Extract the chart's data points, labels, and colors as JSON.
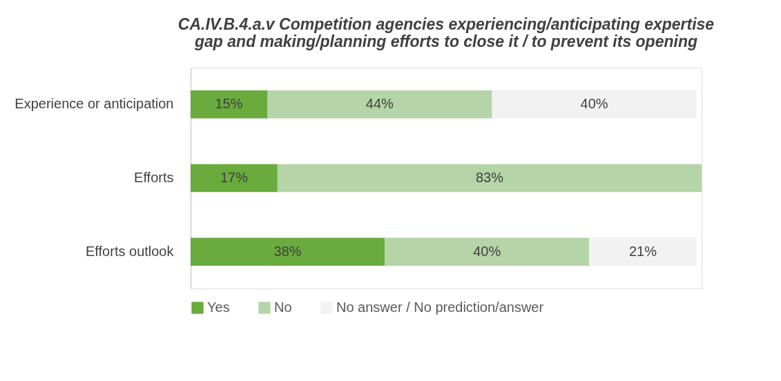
{
  "chart_data": {
    "type": "bar",
    "orientation": "horizontal",
    "stacked": true,
    "title": [
      "CA.IV.B.4.a.v Competition agencies experiencing/anticipating expertise",
      "gap and making/planning efforts to close it / to prevent its opening"
    ],
    "categories": [
      "Experience or anticipation",
      "Efforts",
      "Efforts outlook"
    ],
    "series": [
      {
        "name": "Yes",
        "color": "#6aab3d",
        "values": [
          15,
          17,
          38
        ],
        "value_labels": [
          "15%",
          "17%",
          "38%"
        ]
      },
      {
        "name": "No",
        "color": "#b5d4a8",
        "values": [
          44,
          83,
          40
        ],
        "value_labels": [
          "44%",
          "83%",
          "40%"
        ]
      },
      {
        "name": "No answer / No prediction/answer",
        "color": "#f2f2f2",
        "values": [
          40,
          null,
          21
        ],
        "value_labels": [
          "40%",
          null,
          "21%"
        ]
      }
    ],
    "xlim": [
      0,
      100
    ],
    "tick_labels": "y",
    "legend": "bottom"
  }
}
